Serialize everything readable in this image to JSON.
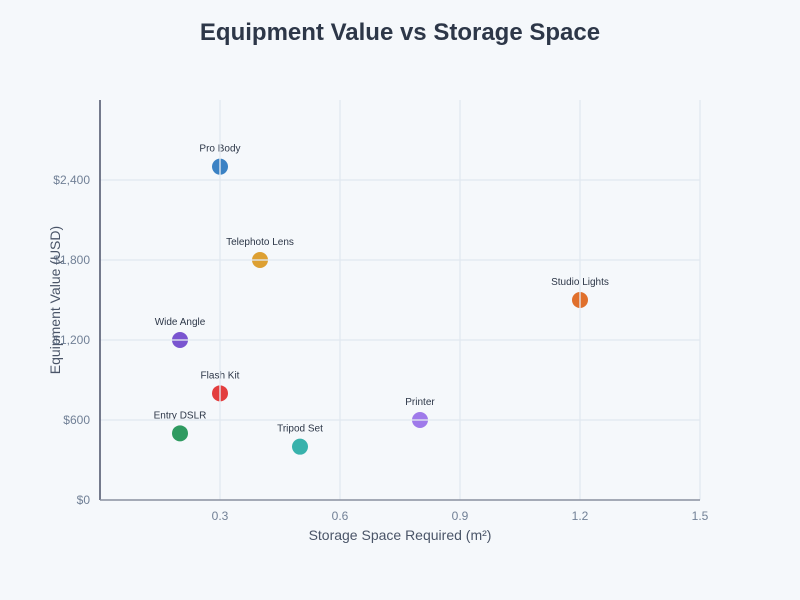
{
  "chart_data": {
    "type": "scatter",
    "title": "Equipment Value vs Storage Space",
    "xlabel": "Storage Space Required (m²)",
    "ylabel": "Equipment Value (USD)",
    "xlim": [
      0,
      1.5
    ],
    "ylim": [
      0,
      3000
    ],
    "xticks": [
      0.3,
      0.6,
      0.9,
      1.2,
      1.5
    ],
    "xtick_labels": [
      "0.3",
      "0.6",
      "0.9",
      "1.2",
      "1.5"
    ],
    "yticks": [
      0,
      600,
      1200,
      1800,
      2400
    ],
    "ytick_labels": [
      "$0",
      "$600",
      "$1,200",
      "$1,800",
      "$2,400"
    ],
    "grid": true,
    "points": [
      {
        "label": "Pro Body",
        "x": 0.3,
        "y": 2500,
        "color": "#3b82c4"
      },
      {
        "label": "Telephoto Lens",
        "x": 0.4,
        "y": 1800,
        "color": "#dda032"
      },
      {
        "label": "Studio Lights",
        "x": 1.2,
        "y": 1500,
        "color": "#e0702c"
      },
      {
        "label": "Wide Angle",
        "x": 0.2,
        "y": 1200,
        "color": "#7a55d0"
      },
      {
        "label": "Flash Kit",
        "x": 0.3,
        "y": 800,
        "color": "#e33e3e"
      },
      {
        "label": "Entry DSLR",
        "x": 0.2,
        "y": 500,
        "color": "#2f9a60"
      },
      {
        "label": "Tripod Set",
        "x": 0.5,
        "y": 400,
        "color": "#38b2ac"
      },
      {
        "label": "Printer",
        "x": 0.8,
        "y": 600,
        "color": "#9f7aea"
      }
    ]
  }
}
